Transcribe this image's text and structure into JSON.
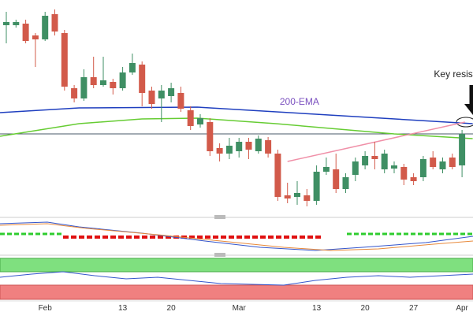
{
  "chart_data": {
    "type": "candlestick",
    "categories": [
      null,
      null,
      null,
      null,
      "Feb",
      null,
      null,
      null,
      null,
      null,
      null,
      null,
      "13",
      null,
      null,
      null,
      null,
      "20",
      null,
      null,
      null,
      null,
      null,
      null,
      "Mar",
      null,
      null,
      null,
      null,
      null,
      null,
      null,
      "13",
      null,
      null,
      null,
      null,
      "20",
      null,
      null,
      null,
      null,
      "27",
      null,
      null,
      null,
      null,
      "Apr"
    ],
    "open": [
      268,
      268,
      270,
      255,
      250,
      282,
      258,
      188,
      175,
      202,
      192,
      196,
      188,
      208,
      218,
      185,
      175,
      178,
      182,
      160,
      142,
      145,
      112,
      105,
      108,
      120,
      108,
      122,
      105,
      52,
      50,
      52,
      45,
      82,
      85,
      60,
      78,
      90,
      102,
      85,
      86,
      88,
      75,
      75,
      100,
      85,
      100,
      90
    ],
    "high": [
      285,
      275,
      275,
      258,
      285,
      288,
      262,
      192,
      212,
      228,
      228,
      200,
      215,
      232,
      222,
      190,
      192,
      195,
      190,
      165,
      155,
      150,
      118,
      125,
      125,
      125,
      128,
      126,
      110,
      68,
      70,
      60,
      90,
      100,
      105,
      80,
      100,
      108,
      120,
      110,
      95,
      92,
      80,
      102,
      108,
      100,
      105,
      135
    ],
    "low": [
      245,
      265,
      245,
      215,
      248,
      255,
      185,
      170,
      172,
      188,
      190,
      180,
      185,
      205,
      165,
      162,
      145,
      170,
      158,
      135,
      138,
      102,
      95,
      98,
      100,
      98,
      105,
      100,
      45,
      42,
      40,
      38,
      40,
      78,
      55,
      55,
      70,
      85,
      85,
      80,
      80,
      65,
      65,
      70,
      85,
      80,
      85,
      75
    ],
    "close": [
      272,
      272,
      248,
      250,
      280,
      260,
      190,
      175,
      202,
      192,
      198,
      188,
      208,
      220,
      182,
      168,
      185,
      188,
      162,
      140,
      150,
      108,
      105,
      115,
      120,
      110,
      124,
      105,
      50,
      48,
      55,
      45,
      82,
      88,
      60,
      75,
      95,
      102,
      98,
      105,
      90,
      72,
      70,
      98,
      88,
      95,
      88,
      130
    ],
    "up_color": "#3f8f64",
    "down_color": "#d25a4a",
    "ylim": [
      30,
      300
    ],
    "overlays": [
      {
        "color": "#1f3fbf",
        "x": [
          -0.65,
          7.5,
          19.7,
          31.9,
          48.1
        ],
        "values": [
          157,
          163,
          164,
          155,
          143
        ]
      },
      {
        "color": "#66cc33",
        "x": [
          -0.65,
          7.5,
          14,
          19.7,
          27.8,
          40,
          48.1
        ],
        "values": [
          127,
          143,
          149,
          150,
          143,
          130,
          124
        ]
      },
      {
        "color": "#f090a8",
        "x": [
          29,
          47.3
        ],
        "values": [
          95,
          145
        ]
      }
    ],
    "hline": {
      "value": 130,
      "color": "#4a5a6a"
    },
    "annotations": [
      {
        "text": "200-EMA",
        "x": 28.2,
        "y": 167,
        "color": "#7a4fbf"
      },
      {
        "text": "Key resist",
        "x": 44.1,
        "y": 202,
        "color": "#222"
      }
    ]
  }
}
